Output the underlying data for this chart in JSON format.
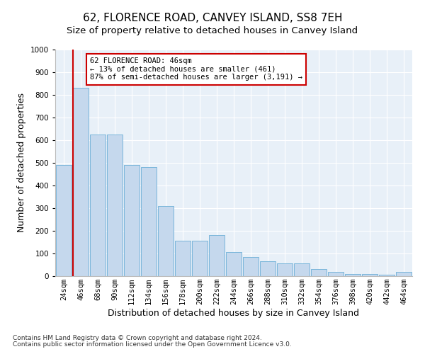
{
  "title": "62, FLORENCE ROAD, CANVEY ISLAND, SS8 7EH",
  "subtitle": "Size of property relative to detached houses in Canvey Island",
  "xlabel": "Distribution of detached houses by size in Canvey Island",
  "ylabel": "Number of detached properties",
  "footnote1": "Contains HM Land Registry data © Crown copyright and database right 2024.",
  "footnote2": "Contains public sector information licensed under the Open Government Licence v3.0.",
  "annotation_title": "62 FLORENCE ROAD: 46sqm",
  "annotation_line1": "← 13% of detached houses are smaller (461)",
  "annotation_line2": "87% of semi-detached houses are larger (3,191) →",
  "bar_values": [
    490,
    830,
    625,
    625,
    490,
    480,
    310,
    155,
    155,
    180,
    105,
    85,
    65,
    55,
    55,
    30,
    20,
    10,
    10,
    5,
    20
  ],
  "categories": [
    "24sqm",
    "46sqm",
    "68sqm",
    "90sqm",
    "112sqm",
    "134sqm",
    "156sqm",
    "178sqm",
    "200sqm",
    "222sqm",
    "244sqm",
    "266sqm",
    "288sqm",
    "310sqm",
    "332sqm",
    "354sqm",
    "376sqm",
    "398sqm",
    "420sqm",
    "442sqm",
    "464sqm"
  ],
  "bar_color": "#c5d8ed",
  "bar_edge_color": "#6aaed6",
  "vline_color": "#cc0000",
  "vline_x": 1,
  "background_color": "#e8f0f8",
  "grid_color": "#ffffff",
  "ylim": [
    0,
    1000
  ],
  "yticks": [
    0,
    100,
    200,
    300,
    400,
    500,
    600,
    700,
    800,
    900,
    1000
  ],
  "annotation_box_color": "#cc0000",
  "title_fontsize": 11,
  "subtitle_fontsize": 9.5,
  "label_fontsize": 9,
  "tick_fontsize": 7.5,
  "footnote_fontsize": 6.5
}
